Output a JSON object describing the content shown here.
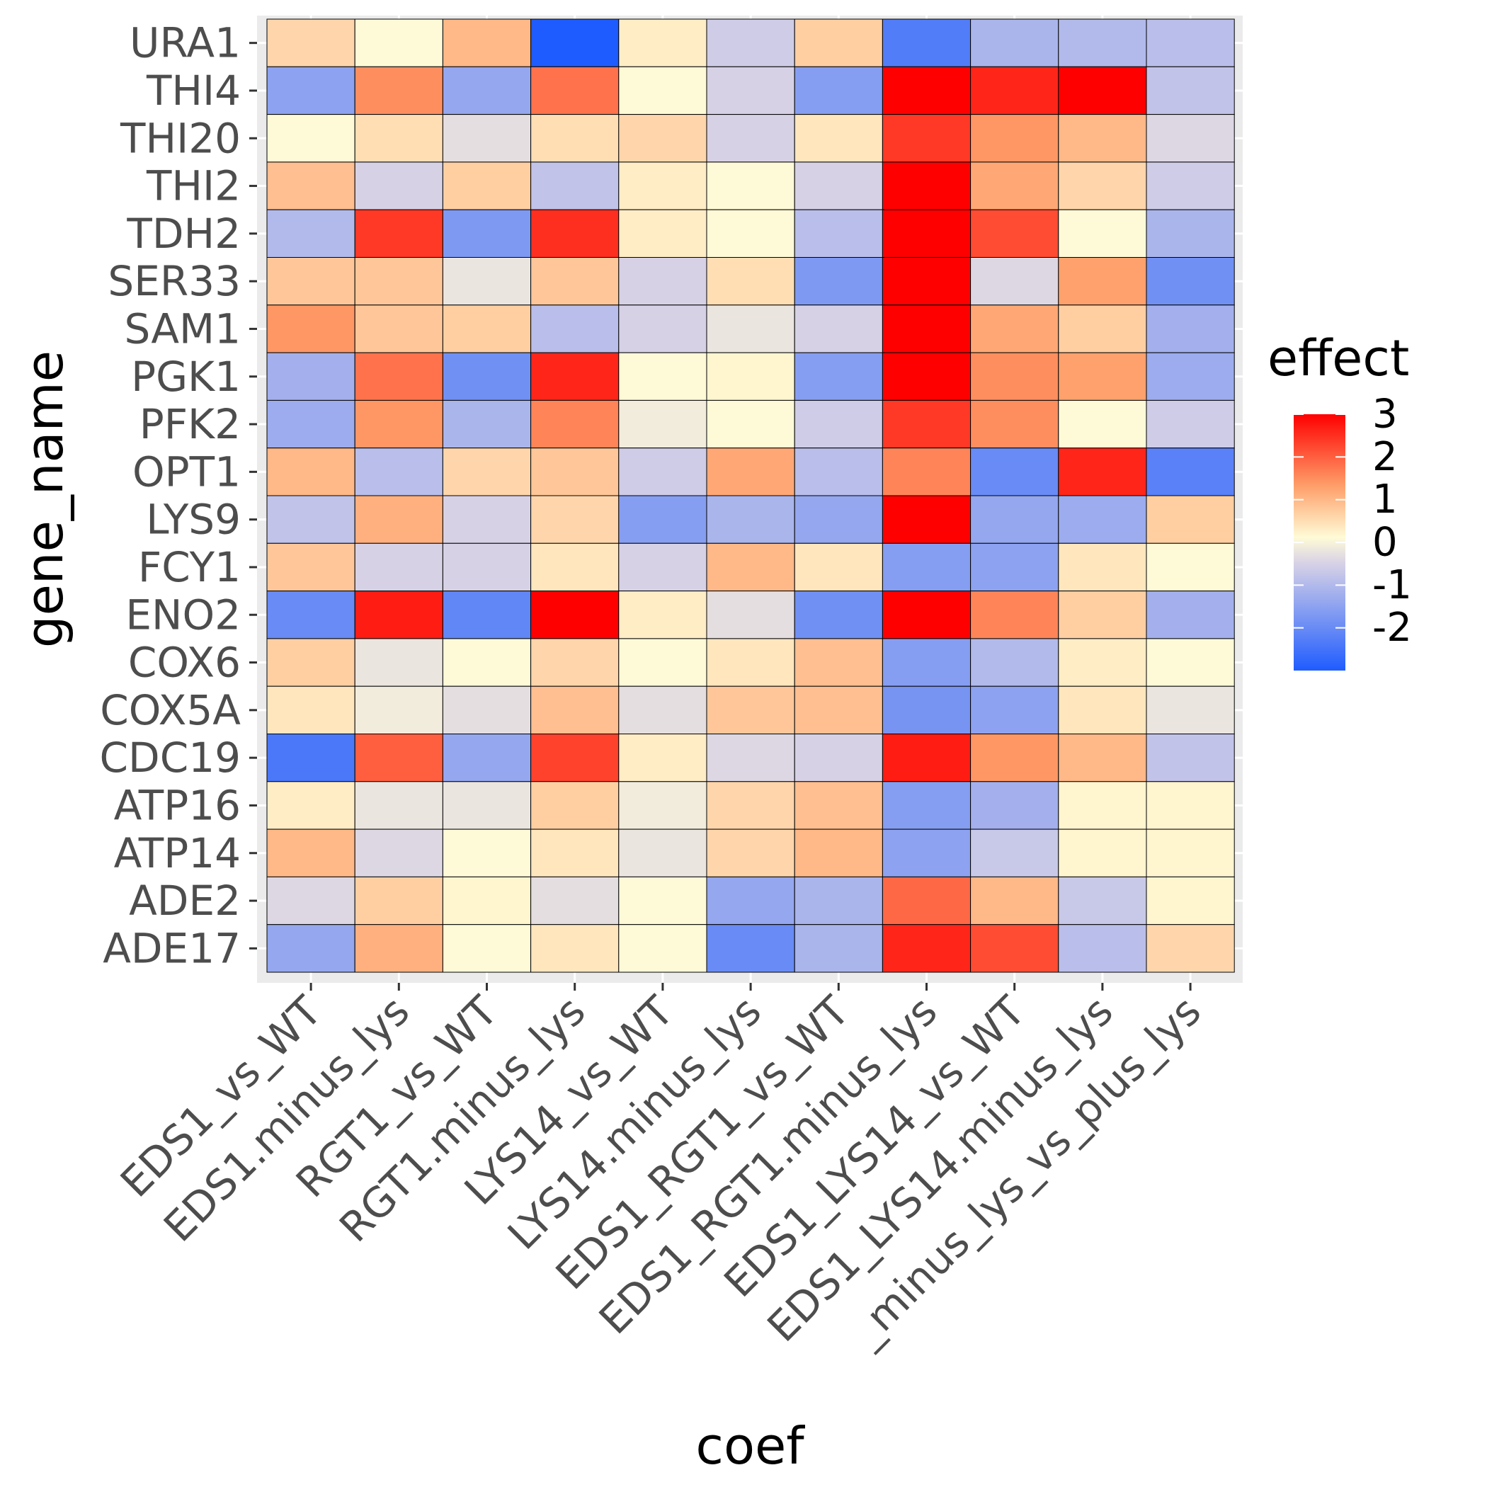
{
  "chart_data": {
    "type": "heatmap",
    "xlabel": "coef",
    "ylabel": "gene_name",
    "x_categories": [
      "EDS1_vs_WT",
      "EDS1.minus_lys",
      "RGT1_vs_WT",
      "RGT1.minus_lys",
      "LYS14_vs_WT",
      "LYS14.minus_lys",
      "EDS1_RGT1_vs_WT",
      "EDS1_RGT1.minus_lys",
      "EDS1_LYS14_vs_WT",
      "EDS1_LYS14.minus_lys",
      "_minus_lys_vs_plus_lys"
    ],
    "y_categories": [
      "URA1",
      "THI4",
      "THI20",
      "THI2",
      "TDH2",
      "SER33",
      "SAM1",
      "PGK1",
      "PFK2",
      "OPT1",
      "LYS9",
      "FCY1",
      "ENO2",
      "COX6",
      "COX5A",
      "CDC19",
      "ATP16",
      "ATP14",
      "ADE2",
      "ADE17"
    ],
    "values": [
      [
        0.6,
        0.1,
        1.0,
        -3.0,
        0.3,
        -0.6,
        0.7,
        -2.3,
        -1.1,
        -1.0,
        -0.9
      ],
      [
        -1.5,
        1.5,
        -1.4,
        1.8,
        0.1,
        -0.5,
        -1.6,
        3.0,
        2.6,
        3.0,
        -0.8
      ],
      [
        0.1,
        0.5,
        -0.3,
        0.5,
        0.6,
        -0.5,
        0.4,
        2.4,
        1.4,
        1.0,
        -0.4
      ],
      [
        0.9,
        -0.5,
        0.7,
        -0.8,
        0.3,
        0.1,
        -0.5,
        3.0,
        1.2,
        0.6,
        -0.6
      ],
      [
        -1.0,
        2.4,
        -1.7,
        2.5,
        0.3,
        0.1,
        -0.9,
        3.0,
        2.2,
        0.1,
        -1.1
      ],
      [
        0.8,
        0.8,
        -0.2,
        0.8,
        -0.5,
        0.5,
        -1.7,
        3.0,
        -0.4,
        1.3,
        -1.9
      ],
      [
        1.4,
        0.8,
        0.7,
        -0.9,
        -0.5,
        -0.2,
        -0.5,
        3.0,
        1.2,
        0.7,
        -1.2
      ],
      [
        -1.2,
        1.8,
        -1.9,
        2.6,
        0.1,
        0.2,
        -1.6,
        3.0,
        1.5,
        1.3,
        -1.3
      ],
      [
        -1.3,
        1.4,
        -1.1,
        1.6,
        -0.1,
        0.1,
        -0.6,
        2.4,
        1.5,
        0.1,
        -0.6
      ],
      [
        1.0,
        -0.9,
        0.6,
        0.8,
        -0.6,
        1.2,
        -0.9,
        1.6,
        -2.0,
        2.6,
        -2.2
      ],
      [
        -0.8,
        1.1,
        -0.5,
        0.6,
        -1.6,
        -1.1,
        -1.4,
        3.0,
        -1.4,
        -1.3,
        0.7
      ],
      [
        0.8,
        -0.5,
        -0.5,
        0.4,
        -0.5,
        1.0,
        0.4,
        -1.6,
        -1.5,
        0.4,
        0.1
      ],
      [
        -2.0,
        2.7,
        -2.1,
        3.0,
        0.3,
        -0.3,
        -1.9,
        3.0,
        1.6,
        0.7,
        -1.2
      ],
      [
        0.7,
        -0.2,
        0.1,
        0.6,
        0.1,
        0.4,
        0.9,
        -1.6,
        -1.0,
        0.3,
        0.1
      ],
      [
        0.4,
        -0.1,
        -0.3,
        0.9,
        -0.3,
        0.8,
        0.9,
        -1.8,
        -1.5,
        0.4,
        -0.2
      ],
      [
        -2.4,
        2.0,
        -1.4,
        2.3,
        0.3,
        -0.4,
        -0.5,
        2.7,
        1.4,
        1.0,
        -0.8
      ],
      [
        0.3,
        -0.2,
        -0.2,
        0.7,
        -0.1,
        0.6,
        0.9,
        -1.6,
        -1.2,
        0.2,
        0.2
      ],
      [
        1.0,
        -0.4,
        0.1,
        0.4,
        -0.2,
        0.6,
        1.0,
        -1.5,
        -0.7,
        0.2,
        0.2
      ],
      [
        -0.4,
        0.7,
        0.2,
        -0.3,
        0.1,
        -1.4,
        -1.1,
        1.9,
        1.0,
        -0.7,
        0.2
      ],
      [
        -1.4,
        1.1,
        0.1,
        0.4,
        0.1,
        -2.0,
        -1.1,
        2.6,
        2.2,
        -0.9,
        0.6
      ]
    ],
    "legend": {
      "title": "effect",
      "ticks": [
        3,
        2,
        1,
        0,
        -1,
        -2
      ],
      "range": [
        -3,
        3
      ],
      "placement": "right",
      "colors": {
        "low": "#1f5cff",
        "mid_low": "#d8d2e6",
        "mid": "#fffbd6",
        "mid_high": "#ff9f6a",
        "high": "#ff0000"
      }
    },
    "panel_background": "#ebebeb",
    "grid": true
  }
}
